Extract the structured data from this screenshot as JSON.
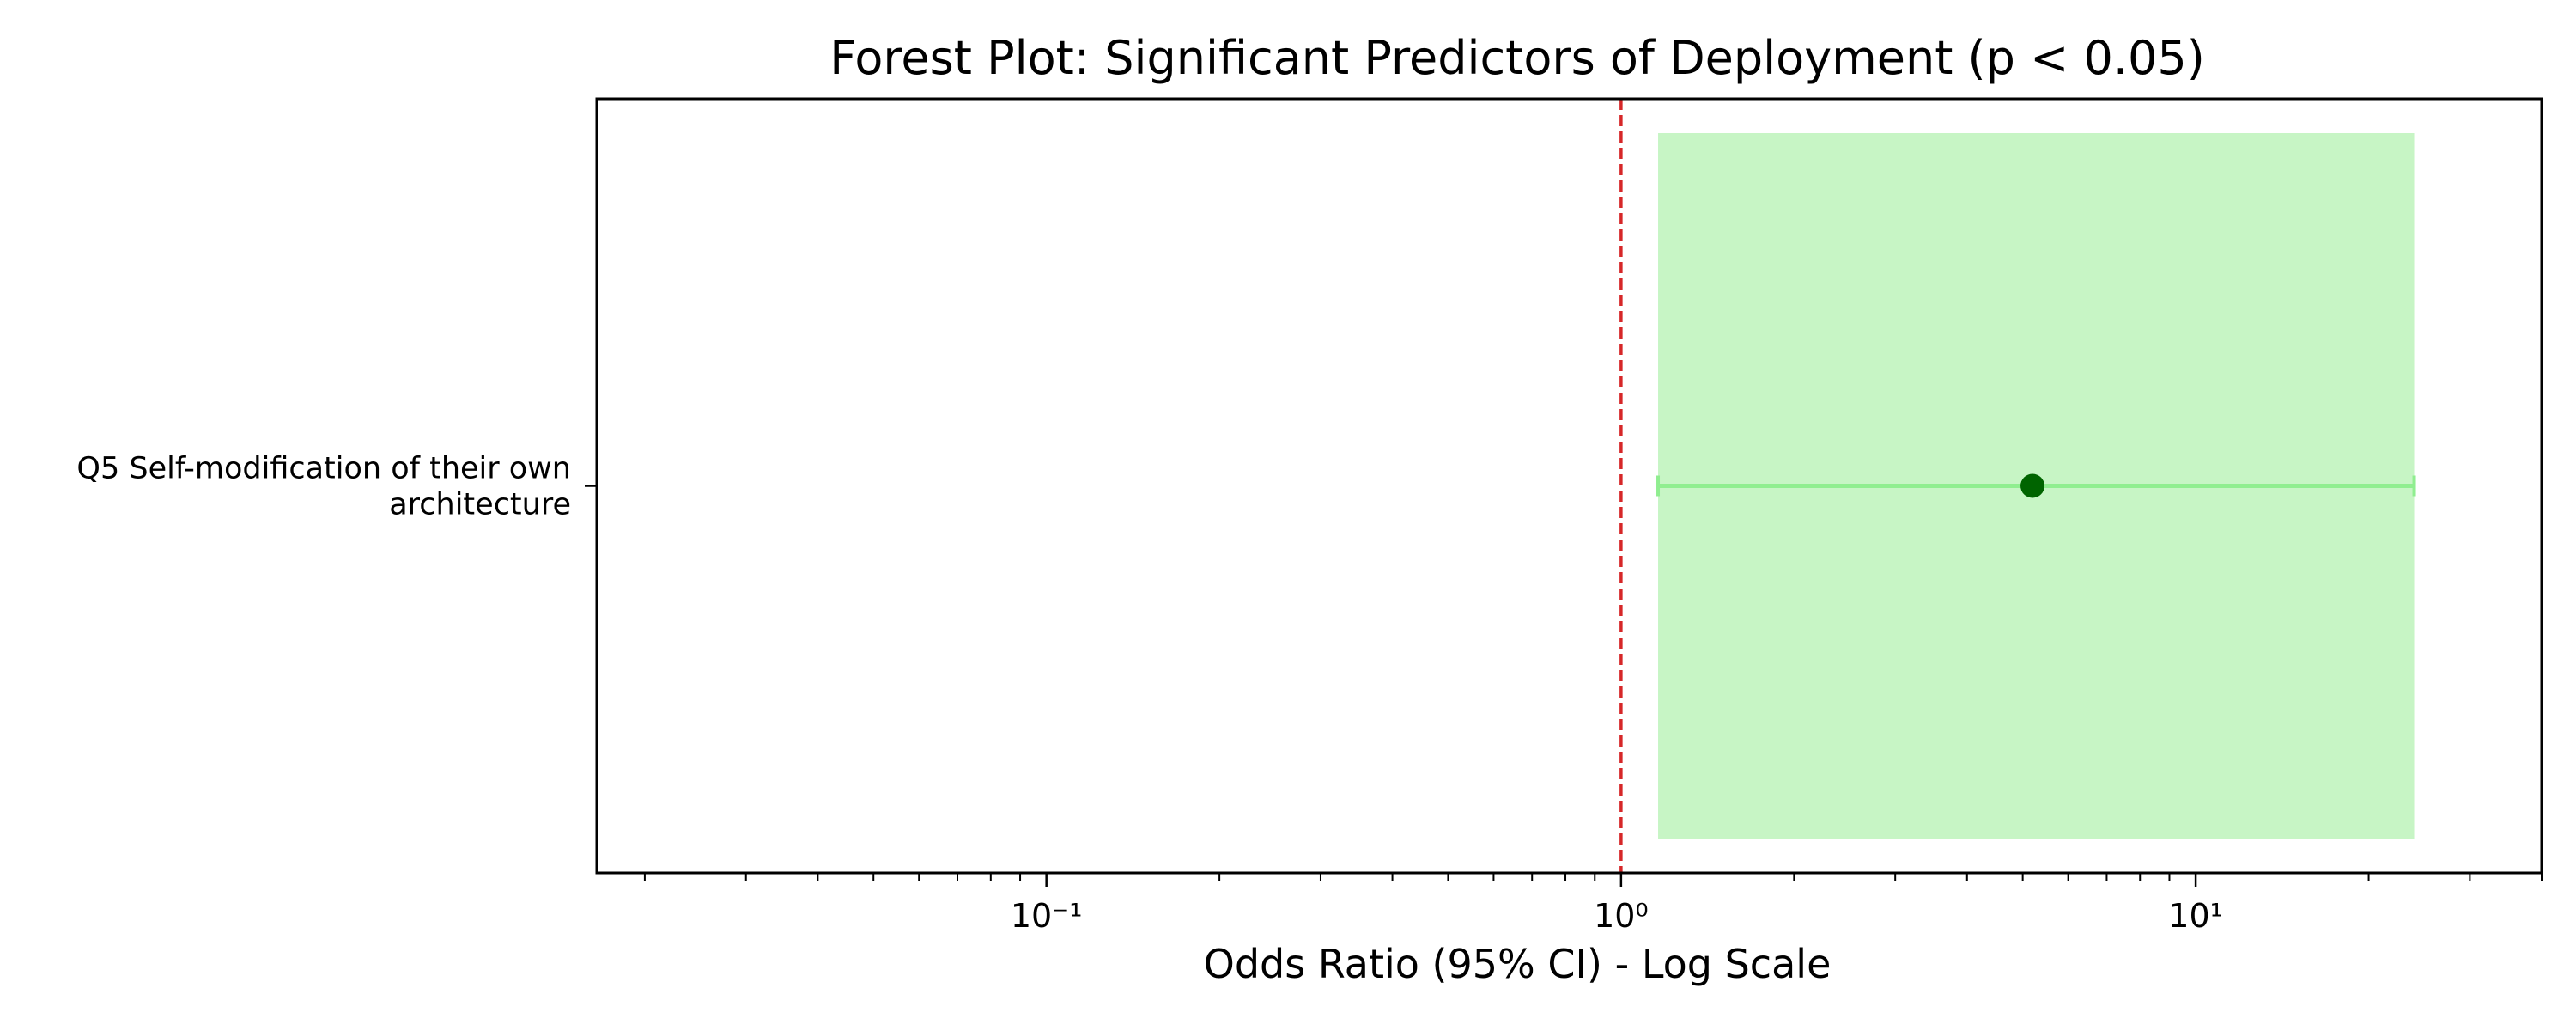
{
  "chart_data": {
    "type": "forest",
    "title": "Forest Plot: Significant Predictors of Deployment (p < 0.05)",
    "xlabel": "Odds Ratio (95% CI) - Log Scale",
    "ylabel": "",
    "x_scale": "log",
    "xlim": [
      0.0165,
      40
    ],
    "x_ticks": [
      {
        "value": 0.1,
        "label": "10⁻¹"
      },
      {
        "value": 1,
        "label": "10⁰"
      },
      {
        "value": 10,
        "label": "10¹"
      }
    ],
    "reference_line": {
      "value": 1,
      "color": "#d62728",
      "style": "dashed"
    },
    "predictors": [
      {
        "label_lines": [
          "Q5 Self-modification of their own",
          "architecture"
        ],
        "odds_ratio": 5.2,
        "ci_low": 1.16,
        "ci_high": 24
      }
    ],
    "colors": {
      "ci_band": "#c7f5c5",
      "ci_line": "#90ee90",
      "point": "#006400",
      "reference": "#d62728"
    },
    "grid": false,
    "legend": "none"
  }
}
